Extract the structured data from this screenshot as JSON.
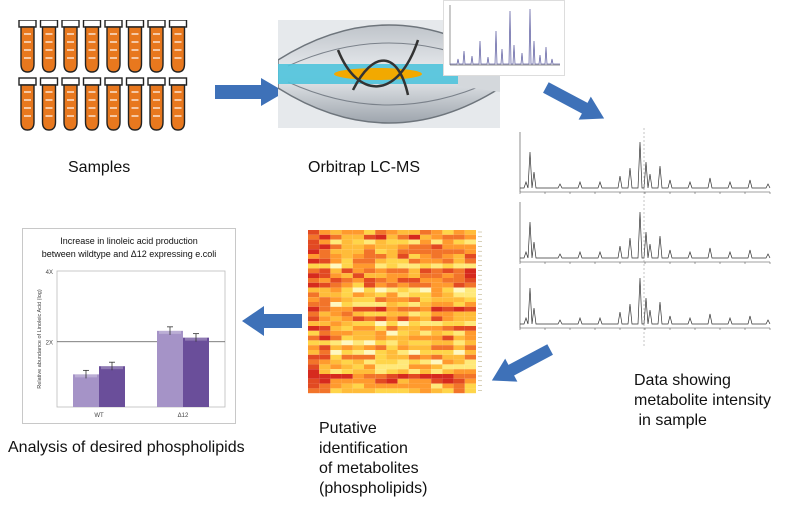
{
  "captions": {
    "samples": "Samples",
    "orbitrap": "Orbitrap LC-MS",
    "intensity": [
      "Data showing",
      "metabolite intensity",
      " in sample"
    ],
    "putative": [
      "Putative",
      "identification",
      "of metabolites",
      "(phospholipids)"
    ],
    "analysis": "Analysis of desired phospholipids"
  },
  "colors": {
    "arrow": "#3e71b8",
    "tube_liquid": "#e8781e",
    "bar_light": "#a593c7",
    "bar_dark": "#6a4e9a"
  },
  "icons": [
    "test-tube-icon",
    "orbitrap-instrument-icon",
    "arrow-right-icon",
    "arrow-down-right-icon",
    "arrow-left-icon",
    "arrow-down-left-icon"
  ],
  "chart_data": {
    "type": "bar",
    "title": [
      "Increase in linoleic acid production",
      "between wildtype and Δ12 expressing e.coli"
    ],
    "ylabel": "Relative abundance of Linoleic Acid (log)",
    "categories": [
      "WT",
      "Δ12"
    ],
    "series": [
      {
        "values": [
          2.4,
          5.6
        ]
      },
      {
        "values": [
          3.0,
          5.1
        ]
      }
    ],
    "yticks": [
      "4X",
      "2X"
    ],
    "ylim": [
      0,
      10
    ]
  }
}
